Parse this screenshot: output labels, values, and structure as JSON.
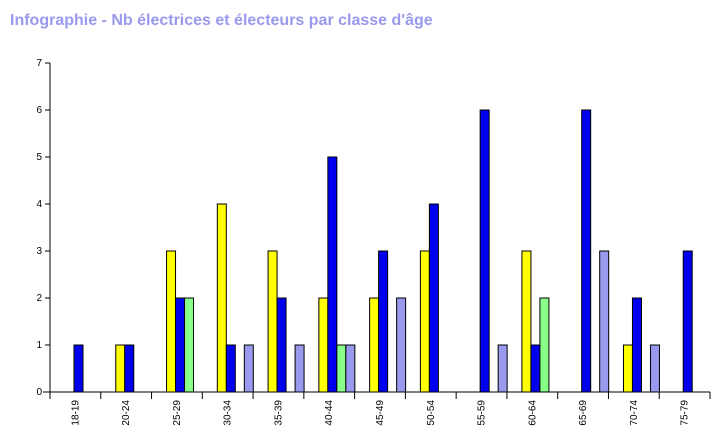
{
  "chart_data": {
    "type": "bar",
    "title": "Infographie - Nb électrices et électeurs par classe d'âge",
    "categories": [
      "18-19",
      "20-24",
      "25-29",
      "30-34",
      "35-39",
      "40-44",
      "45-49",
      "50-54",
      "55-59",
      "60-64",
      "65-69",
      "70-74",
      "75-79"
    ],
    "series": [
      {
        "color": "#ffff00",
        "values": [
          0,
          1,
          3,
          4,
          3,
          2,
          2,
          3,
          0,
          3,
          0,
          1,
          0
        ]
      },
      {
        "color": "#0000ee",
        "values": [
          1,
          1,
          2,
          1,
          2,
          5,
          3,
          4,
          6,
          1,
          6,
          2,
          3
        ]
      },
      {
        "color": "#88ff88",
        "values": [
          0,
          0,
          2,
          0,
          0,
          1,
          0,
          0,
          0,
          2,
          0,
          0,
          0
        ]
      },
      {
        "color": "#9999ee",
        "values": [
          0,
          0,
          0,
          1,
          1,
          1,
          2,
          0,
          1,
          0,
          3,
          1,
          0
        ]
      }
    ],
    "ylim": [
      0,
      7
    ],
    "yticks": [
      "0",
      "1",
      "2",
      "3",
      "4",
      "5",
      "6",
      "7"
    ],
    "grid": false,
    "legend": "none"
  }
}
